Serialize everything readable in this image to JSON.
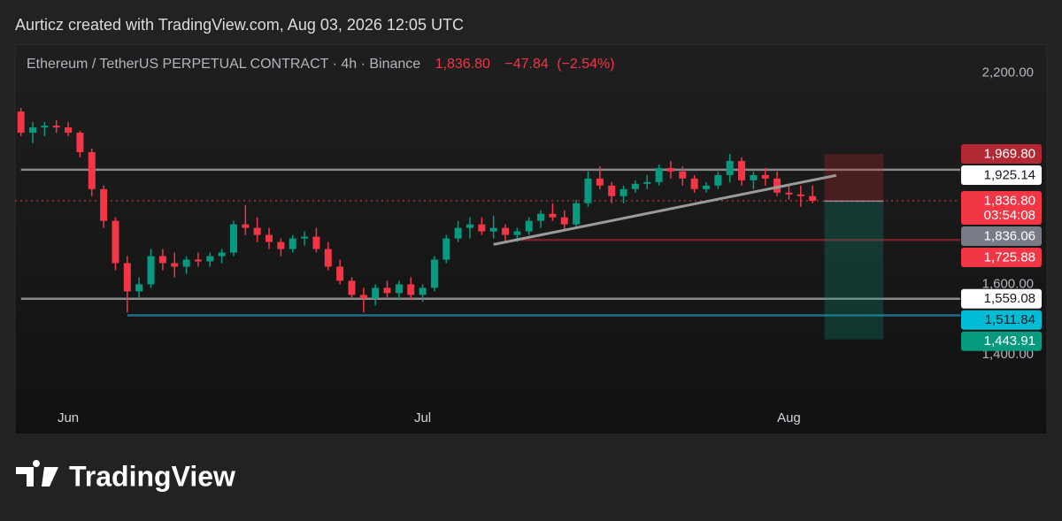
{
  "header": "Aurticz created with TradingView.com, Aug 03, 2026 12:05 UTC",
  "chart_data": {
    "type": "candlestick",
    "title": "Ethereum / TetherUS PERPETUAL CONTRACT · 4h · Binance",
    "last_price": {
      "value": 1836.8,
      "label": "1,836.80"
    },
    "change": {
      "value": -47.84,
      "label": "−47.84"
    },
    "change_percent": {
      "value": -2.54,
      "label": "(−2.54%)"
    },
    "countdown": "03:54:08",
    "categories": [
      null,
      null,
      null,
      null,
      "Jun",
      null,
      null,
      null,
      null,
      null,
      null,
      null,
      null,
      null,
      null,
      null,
      null,
      null,
      null,
      null,
      null,
      null,
      null,
      null,
      null,
      null,
      null,
      null,
      null,
      null,
      null,
      null,
      null,
      null,
      "Jul",
      null,
      null,
      null,
      null,
      null,
      null,
      null,
      null,
      null,
      null,
      null,
      null,
      null,
      null,
      null,
      null,
      null,
      null,
      null,
      null,
      null,
      null,
      null,
      null,
      null,
      null,
      null,
      null,
      null,
      null,
      "Aug",
      null,
      null,
      null,
      null,
      null,
      null,
      null,
      null,
      null,
      null,
      null,
      null,
      null,
      null
    ],
    "open": [
      2090,
      2030,
      2045,
      2050,
      2045,
      2030,
      1975,
      1870,
      1780,
      1660,
      1580,
      1600,
      1680,
      1660,
      1650,
      1670,
      1665,
      1680,
      1690,
      1770,
      1760,
      1740,
      1720,
      1700,
      1730,
      1735,
      1700,
      1650,
      1610,
      1570,
      1560,
      1590,
      1575,
      1600,
      1570,
      1590,
      1670,
      1730,
      1760,
      1770,
      1750,
      1760,
      1740,
      1750,
      1780,
      1800,
      1790,
      1770,
      1830,
      1900,
      1880,
      1850,
      1870,
      1885,
      1890,
      1930,
      1920,
      1900,
      1870,
      1880,
      1910,
      1950,
      1895,
      1910,
      1900,
      1860,
      1855,
      1850,
      null,
      null,
      null,
      null,
      null,
      null,
      null,
      null,
      null,
      null,
      null,
      null
    ],
    "high": [
      2100,
      2060,
      2060,
      2065,
      2060,
      2035,
      1985,
      1880,
      1790,
      1680,
      1620,
      1700,
      1700,
      1690,
      1680,
      1690,
      1690,
      1700,
      1780,
      1825,
      1790,
      1760,
      1730,
      1740,
      1750,
      1760,
      1720,
      1670,
      1620,
      1590,
      1600,
      1610,
      1610,
      1620,
      1600,
      1680,
      1740,
      1780,
      1790,
      1790,
      1795,
      1770,
      1760,
      1790,
      1810,
      1830,
      1810,
      1840,
      1920,
      1935,
      1890,
      1880,
      1895,
      1910,
      1940,
      1950,
      1935,
      1910,
      1890,
      1920,
      1970,
      1960,
      1920,
      1930,
      1920,
      1880,
      1880,
      1880,
      null,
      null,
      null,
      null,
      null,
      null,
      null,
      null,
      null,
      null,
      null,
      null
    ],
    "low": [
      2020,
      2000,
      2020,
      2030,
      2020,
      1960,
      1850,
      1760,
      1640,
      1520,
      1560,
      1590,
      1640,
      1620,
      1630,
      1650,
      1650,
      1660,
      1680,
      1740,
      1720,
      1700,
      1680,
      1690,
      1710,
      1690,
      1640,
      1600,
      1560,
      1520,
      1540,
      1560,
      1555,
      1555,
      1550,
      1580,
      1660,
      1720,
      1730,
      1740,
      1730,
      1720,
      1720,
      1740,
      1760,
      1780,
      1750,
      1760,
      1820,
      1870,
      1830,
      1830,
      1860,
      1870,
      1880,
      1900,
      1880,
      1860,
      1860,
      1870,
      1890,
      1880,
      1870,
      1880,
      1850,
      1840,
      1820,
      1830,
      null,
      null,
      null,
      null,
      null,
      null,
      null,
      null,
      null,
      null,
      null,
      null
    ],
    "close": [
      2030,
      2045,
      2050,
      2045,
      2030,
      1975,
      1870,
      1780,
      1660,
      1580,
      1600,
      1680,
      1660,
      1650,
      1670,
      1665,
      1680,
      1690,
      1770,
      1760,
      1740,
      1720,
      1700,
      1730,
      1735,
      1700,
      1650,
      1610,
      1570,
      1560,
      1590,
      1575,
      1600,
      1570,
      1590,
      1670,
      1730,
      1760,
      1770,
      1750,
      1760,
      1740,
      1750,
      1780,
      1800,
      1790,
      1770,
      1830,
      1900,
      1880,
      1850,
      1870,
      1885,
      1890,
      1930,
      1920,
      1900,
      1870,
      1880,
      1910,
      1950,
      1895,
      1910,
      1900,
      1860,
      1855,
      1850,
      1836.8,
      null,
      null,
      null,
      null,
      null,
      null,
      null,
      null,
      null,
      null,
      null,
      null
    ],
    "up_color": "#089981",
    "down_color": "#f23645",
    "ylim": [
      1177,
      2281
    ],
    "yticks": [
      {
        "value": 2200,
        "label": "2,200.00"
      },
      {
        "value": 1600,
        "label": "1,600.00"
      },
      {
        "value": 1400,
        "label": "1,400.00"
      }
    ],
    "grid": false,
    "horizontal_lines": [
      {
        "value": 1925.14,
        "label": "1,925.14",
        "from": 0,
        "color": "#8a8a8a",
        "badge_color": "#ffffff",
        "text_color": "#131722"
      },
      {
        "value": 1725.88,
        "label": "1,725.88",
        "from": 42,
        "color": "#7a1e26",
        "badge_color": "#f23645",
        "text_color": "#ffffff"
      },
      {
        "value": 1559.08,
        "label": "1,559.08",
        "from": 0,
        "color": "#8a8a8a",
        "badge_color": "#ffffff",
        "text_color": "#131722"
      },
      {
        "value": 1511.84,
        "label": "1,511.84",
        "from": 9,
        "color": "#1f6f8b",
        "badge_color": "#00bcd4",
        "text_color": "#131722"
      }
    ],
    "trendline": {
      "x": [
        40,
        69
      ],
      "y": [
        1713,
        1909
      ],
      "color": "#9a9a9a"
    },
    "position": {
      "x": [
        68,
        73
      ],
      "stop": {
        "value": 1969.8,
        "label": "1,969.80",
        "color": "#b22833"
      },
      "entry": {
        "value": 1836.06,
        "label": "1,836.06",
        "color": "#787b86"
      },
      "target": {
        "value": 1443.91,
        "label": "1,443.91",
        "color": "#089981"
      }
    }
  },
  "footer": {
    "logo": "TradingView"
  }
}
